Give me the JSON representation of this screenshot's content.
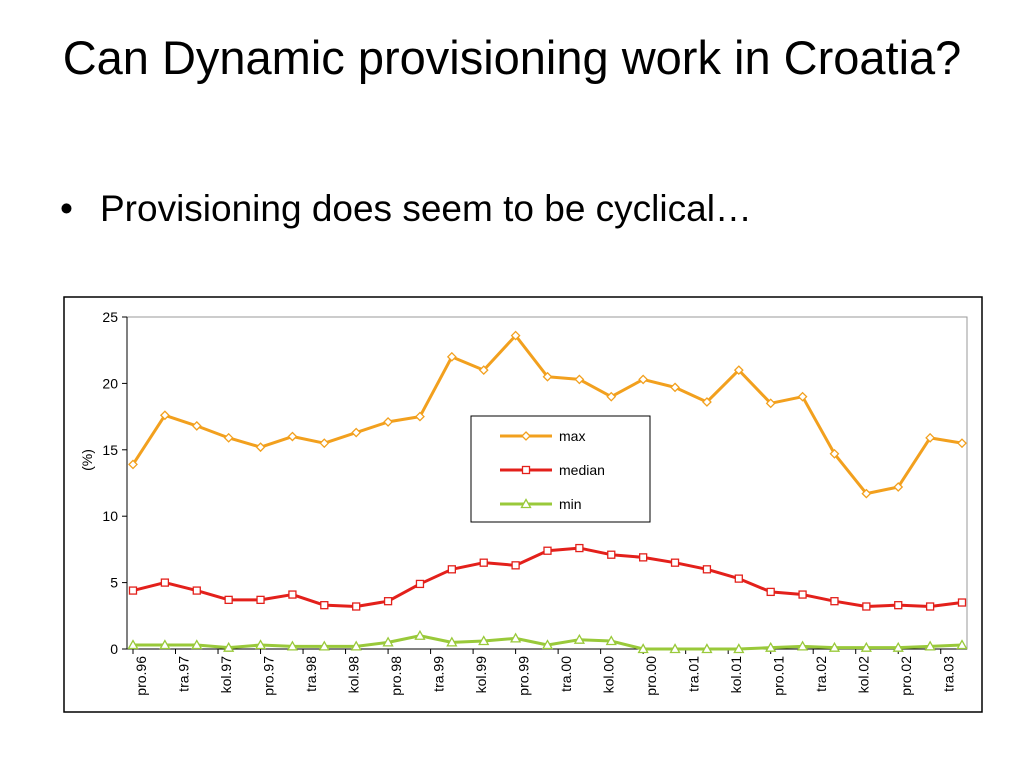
{
  "title": "Can Dynamic provisioning work in Croatia?",
  "bullets": [
    "Provisioning does seem to be cyclical…"
  ],
  "chart_data": {
    "type": "line",
    "ylabel": "(%)",
    "x": [
      "1996-12",
      "1997-03",
      "1997-06",
      "1997-09",
      "1997-12",
      "1998-03",
      "1998-06",
      "1998-09",
      "1998-12",
      "1999-03",
      "1999-06",
      "1999-09",
      "1999-12",
      "2000-03",
      "2000-06",
      "2000-09",
      "2000-12",
      "2001-03",
      "2001-06",
      "2001-09",
      "2001-12",
      "2002-03",
      "2002-06",
      "2002-09",
      "2002-12",
      "2003-03",
      "2003-06"
    ],
    "xlim": [
      "1996-12",
      "2003-06"
    ],
    "xticks": [
      {
        "value": "1996-12",
        "label": "pro.96"
      },
      {
        "value": "1997-04",
        "label": "tra.97"
      },
      {
        "value": "1997-08",
        "label": "kol.97"
      },
      {
        "value": "1997-12",
        "label": "pro.97"
      },
      {
        "value": "1998-04",
        "label": "tra.98"
      },
      {
        "value": "1998-08",
        "label": "kol.98"
      },
      {
        "value": "1998-12",
        "label": "pro.98"
      },
      {
        "value": "1999-04",
        "label": "tra.99"
      },
      {
        "value": "1999-08",
        "label": "kol.99"
      },
      {
        "value": "1999-12",
        "label": "pro.99"
      },
      {
        "value": "2000-04",
        "label": "tra.00"
      },
      {
        "value": "2000-08",
        "label": "kol.00"
      },
      {
        "value": "2000-12",
        "label": "pro.00"
      },
      {
        "value": "2001-04",
        "label": "tra.01"
      },
      {
        "value": "2001-08",
        "label": "kol.01"
      },
      {
        "value": "2001-12",
        "label": "pro.01"
      },
      {
        "value": "2002-04",
        "label": "tra.02"
      },
      {
        "value": "2002-08",
        "label": "kol.02"
      },
      {
        "value": "2002-12",
        "label": "pro.02"
      },
      {
        "value": "2003-04",
        "label": "tra.03"
      }
    ],
    "ylim": [
      0,
      25
    ],
    "yticks": [
      0,
      5,
      10,
      15,
      20,
      25
    ],
    "series": [
      {
        "name": "max",
        "color": "#f2a01e",
        "marker": "diamond",
        "values": [
          13.9,
          17.6,
          16.8,
          15.9,
          15.2,
          16.0,
          15.5,
          16.3,
          17.1,
          17.5,
          22.0,
          21.0,
          23.6,
          20.5,
          20.3,
          19.0,
          20.3,
          19.7,
          18.6,
          21.0,
          18.5,
          19.0,
          14.7,
          11.7,
          12.2,
          15.9,
          15.5
        ]
      },
      {
        "name": "median",
        "color": "#e3201b",
        "marker": "square",
        "values": [
          4.4,
          5.0,
          4.4,
          3.7,
          3.7,
          4.1,
          3.3,
          3.2,
          3.6,
          4.9,
          6.0,
          6.5,
          6.3,
          7.4,
          7.6,
          7.1,
          6.9,
          6.5,
          6.0,
          5.3,
          4.3,
          4.1,
          3.6,
          3.2,
          3.3,
          3.2,
          3.5
        ]
      },
      {
        "name": "min",
        "color": "#99c93a",
        "marker": "triangle",
        "values": [
          0.3,
          0.3,
          0.3,
          0.1,
          0.3,
          0.2,
          0.2,
          0.2,
          0.5,
          1.0,
          0.5,
          0.6,
          0.8,
          0.3,
          0.7,
          0.6,
          0.0,
          0.0,
          0.0,
          0.0,
          0.1,
          0.2,
          0.1,
          0.1,
          0.1,
          0.2,
          0.3
        ]
      }
    ]
  }
}
